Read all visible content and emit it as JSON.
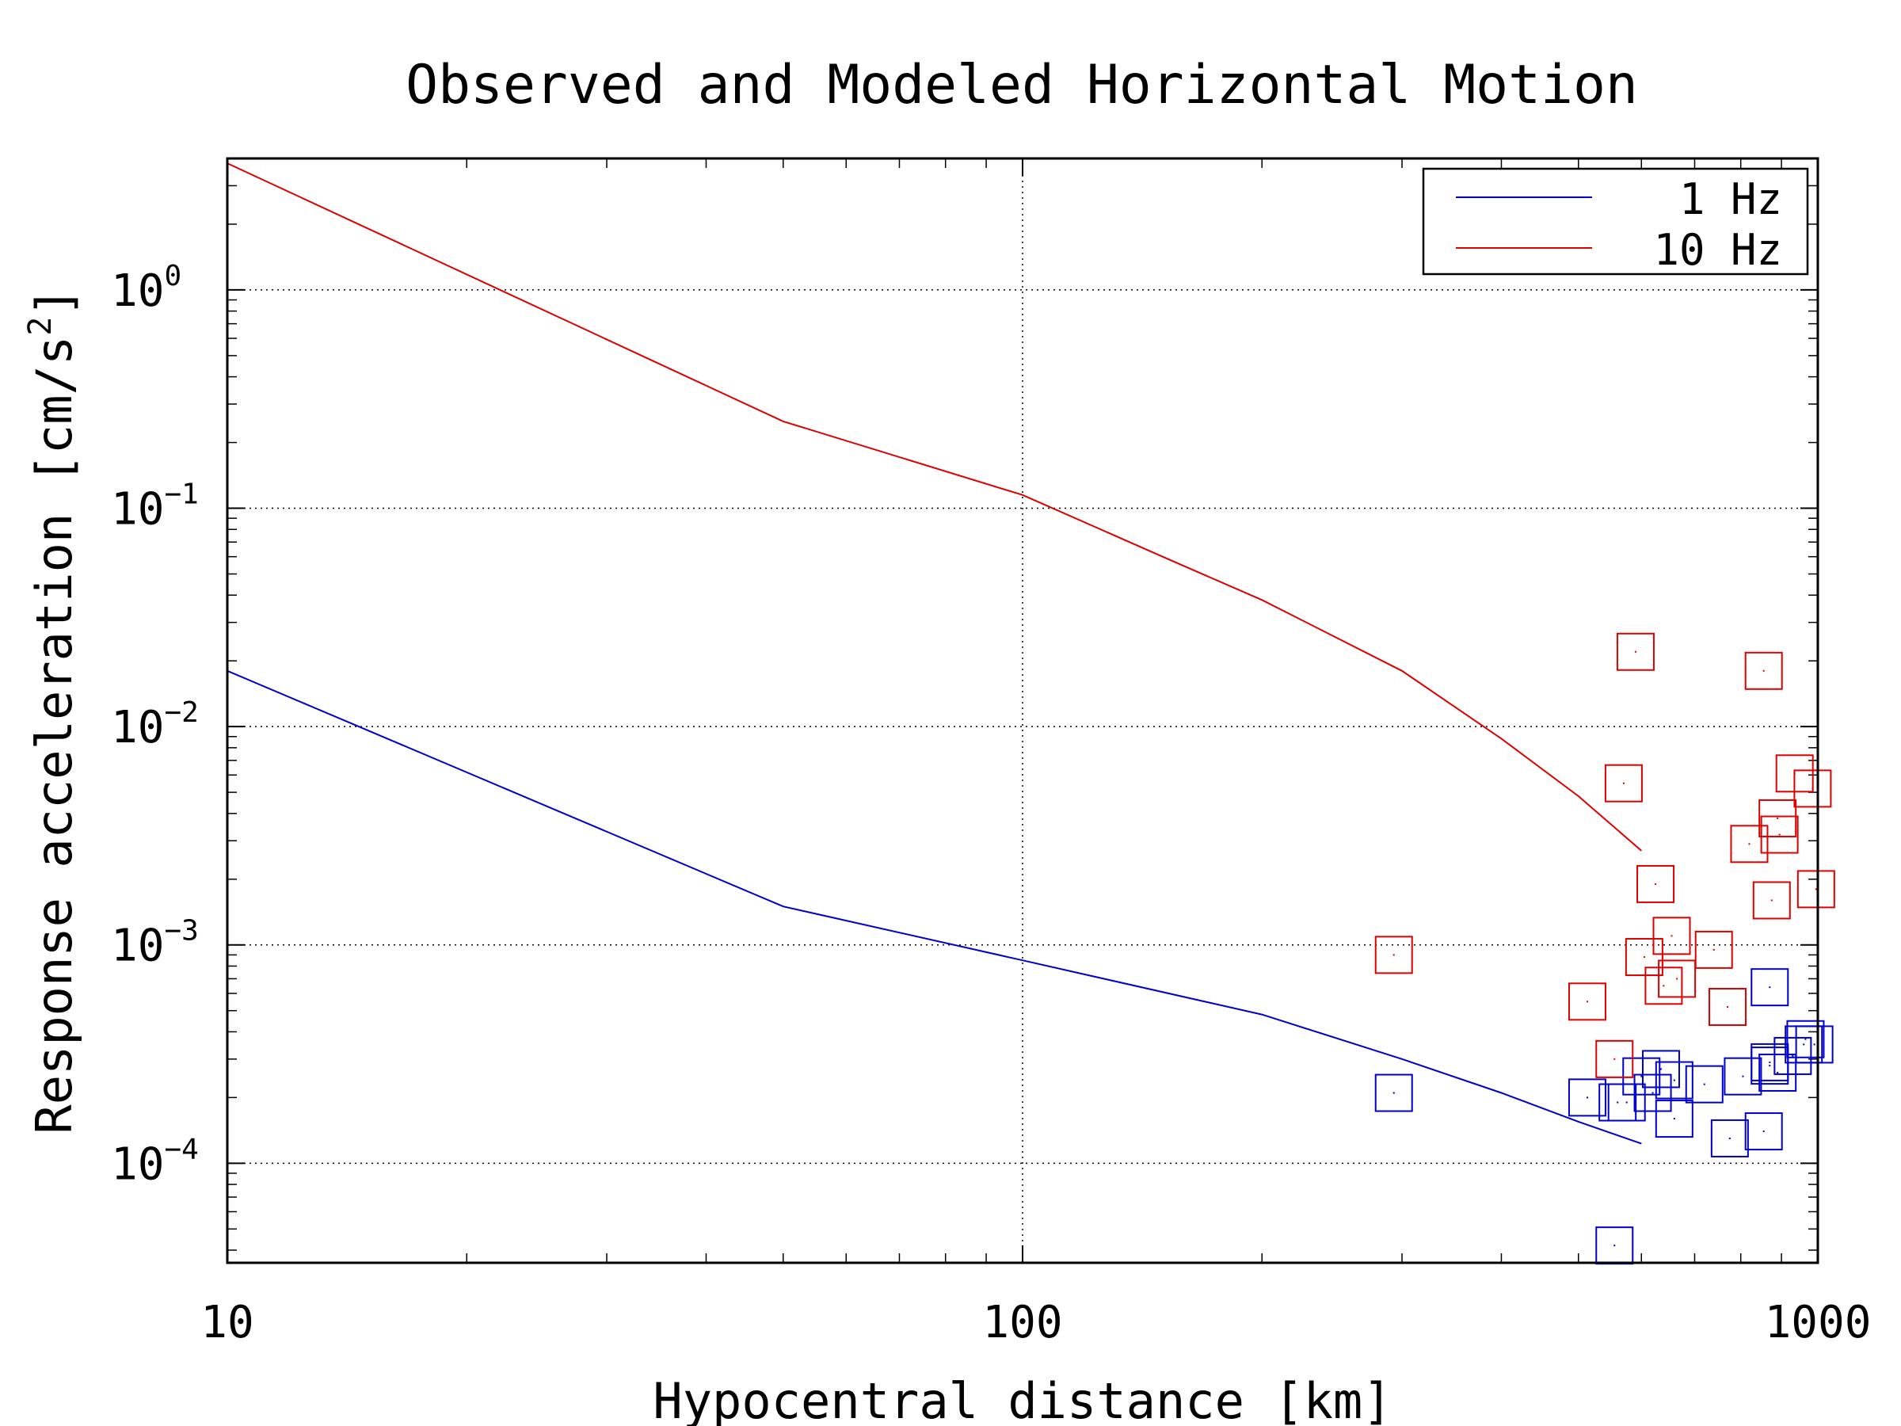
{
  "chart_data": {
    "type": "line",
    "title": "Observed and Modeled Horizontal Motion",
    "xlabel": "Hypocentral distance [km]",
    "ylabel": "Response acceleration [cm/s^2]",
    "ylabel_parts": {
      "main": "Response acceleration [cm/s",
      "sup": "2",
      "close": "]"
    },
    "x_scale": "log",
    "y_scale": "log",
    "xlim": [
      10,
      1000
    ],
    "ylim": [
      3.5e-05,
      4
    ],
    "x_ticks": [
      {
        "value": 10,
        "label": "10"
      },
      {
        "value": 100,
        "label": "100"
      },
      {
        "value": 1000,
        "label": "1000"
      }
    ],
    "y_ticks": [
      {
        "value": 1,
        "base": "10",
        "exp": "0"
      },
      {
        "value": 0.1,
        "base": "10",
        "exp": "−1"
      },
      {
        "value": 0.01,
        "base": "10",
        "exp": "−2"
      },
      {
        "value": 0.001,
        "base": "10",
        "exp": "−3"
      },
      {
        "value": 0.0001,
        "base": "10",
        "exp": "−4"
      }
    ],
    "grid": true,
    "legend_position": "top-right",
    "series": [
      {
        "name": "1 Hz",
        "color": "#0000cc",
        "line": [
          [
            10,
            0.018
          ],
          [
            50,
            0.0015
          ],
          [
            100,
            0.00085
          ],
          [
            200,
            0.00048
          ],
          [
            300,
            0.0003
          ],
          [
            400,
            0.00021
          ],
          [
            500,
            0.000155
          ],
          [
            600,
            0.000123
          ]
        ],
        "observed": [
          [
            293,
            0.00021
          ],
          [
            513,
            0.0002
          ],
          [
            555,
            4.2e-05
          ],
          [
            560,
            0.00019
          ],
          [
            575,
            0.00019
          ],
          [
            600,
            0.00025
          ],
          [
            620,
            0.00021
          ],
          [
            635,
            0.00027
          ],
          [
            660,
            0.00024
          ],
          [
            660,
            0.00016
          ],
          [
            720,
            0.00023
          ],
          [
            775,
            0.00013
          ],
          [
            805,
            0.00025
          ],
          [
            855,
            0.00014
          ],
          [
            870,
            0.00064
          ],
          [
            870,
            0.00028
          ],
          [
            890,
            0.00026
          ],
          [
            930,
            0.00031
          ],
          [
            960,
            0.00035
          ],
          [
            965,
            0.00037
          ],
          [
            990,
            0.00035
          ],
          [
            870,
            0.00029
          ]
        ]
      },
      {
        "name": "10 Hz",
        "color": "#dd0000",
        "line": [
          [
            10,
            3.8
          ],
          [
            50,
            0.25
          ],
          [
            100,
            0.115
          ],
          [
            150,
            0.06
          ],
          [
            200,
            0.038
          ],
          [
            300,
            0.018
          ],
          [
            400,
            0.0088
          ],
          [
            500,
            0.0048
          ],
          [
            600,
            0.0027
          ]
        ],
        "observed": [
          [
            293,
            0.0009
          ],
          [
            513,
            0.00055
          ],
          [
            555,
            0.0003
          ],
          [
            570,
            0.0055
          ],
          [
            590,
            0.022
          ],
          [
            605,
            0.00088
          ],
          [
            625,
            0.0019
          ],
          [
            640,
            0.00065
          ],
          [
            655,
            0.0011
          ],
          [
            665,
            0.0007
          ],
          [
            740,
            0.00095
          ],
          [
            770,
            0.00052
          ],
          [
            820,
            0.0029
          ],
          [
            855,
            0.018
          ],
          [
            875,
            0.0016
          ],
          [
            890,
            0.0038
          ],
          [
            895,
            0.0032
          ],
          [
            935,
            0.0061
          ],
          [
            985,
            0.0052
          ],
          [
            995,
            0.0018
          ]
        ]
      }
    ]
  }
}
